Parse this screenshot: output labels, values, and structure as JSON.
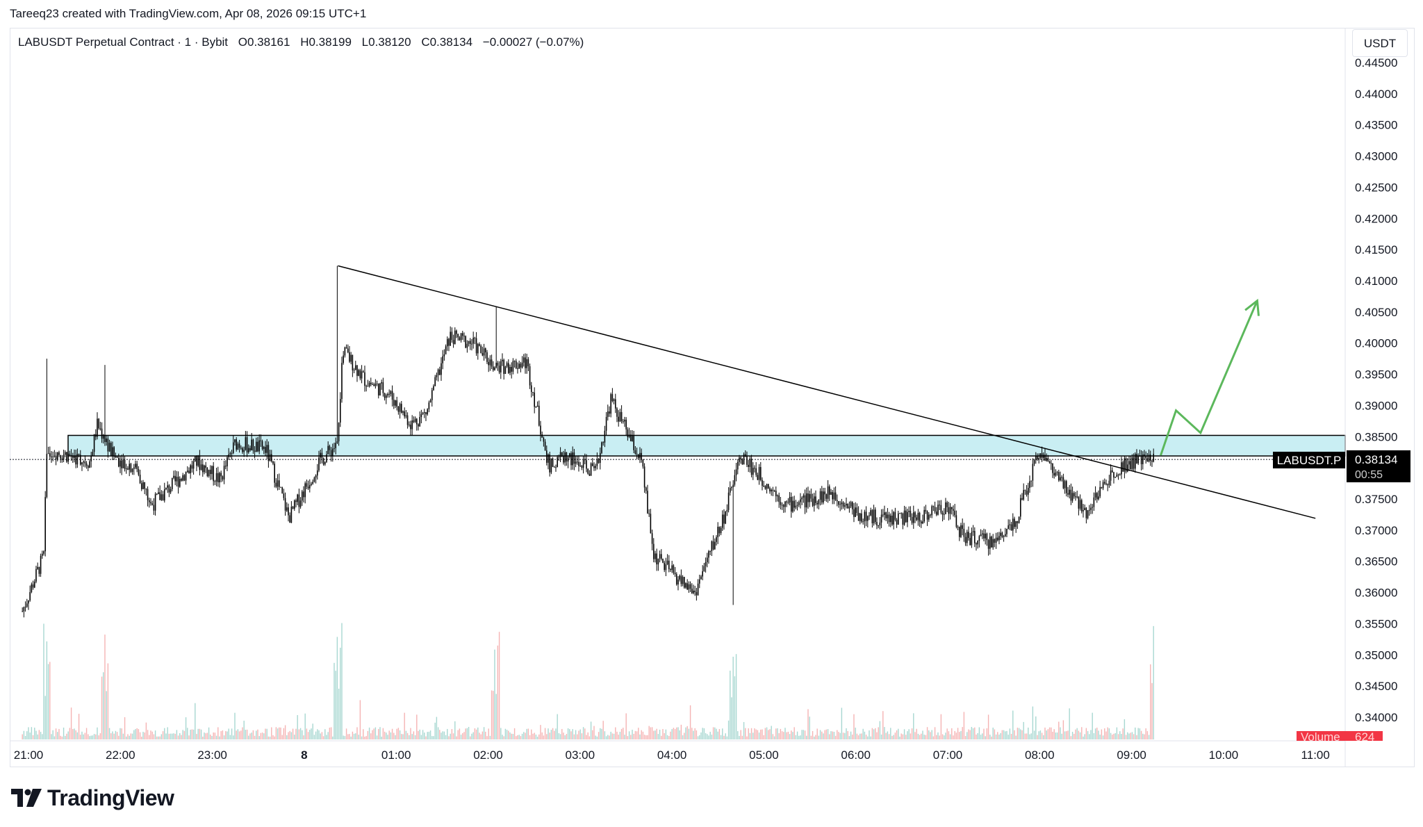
{
  "header": {
    "snapshot_credit": "Tareeq23 created with TradingView.com, Apr 08, 2026 09:15 UTC+1"
  },
  "legend": {
    "symbol": "LABUSDT Perpetual Contract · 1 · Bybit",
    "open": "O0.38161",
    "high": "H0.38199",
    "low": "L0.38120",
    "close": "C0.38134",
    "change": "−0.00027 (−0.07%)"
  },
  "price_scale": {
    "currency": "USDT",
    "tick_labels": [
      "0.44500",
      "0.44000",
      "0.43500",
      "0.43000",
      "0.42500",
      "0.42000",
      "0.41500",
      "0.41000",
      "0.40500",
      "0.40000",
      "0.39500",
      "0.39000",
      "0.38500",
      "0.38000",
      "0.37500",
      "0.37000",
      "0.36500",
      "0.36000",
      "0.35500",
      "0.35000",
      "0.34500",
      "0.34000"
    ]
  },
  "last_price_badge": {
    "symbol": "LABUSDT.P",
    "price": "0.38134",
    "countdown": "00:55"
  },
  "volume_badge": {
    "label": "Volume",
    "value": "624"
  },
  "time_axis": {
    "tick_labels": [
      "21:00",
      "22:00",
      "23:00",
      "8",
      "01:00",
      "02:00",
      "03:00",
      "04:00",
      "05:00",
      "06:00",
      "07:00",
      "08:00",
      "09:00",
      "10:00",
      "11:00"
    ]
  },
  "colors": {
    "candle": "#000000",
    "zone_fill": "#c9eef3",
    "trendline": "#000000",
    "projection": "#5cb85c",
    "volume_up": "#a7d7d1",
    "volume_down": "#f5b3b3",
    "badge_bg": "#000000",
    "volume_badge_bg": "#f23645"
  },
  "chart_data": {
    "type": "candlestick",
    "interval": "1",
    "y_range": [
      0.3385,
      0.4455
    ],
    "x_range_hours": [
      "20:56",
      "11:22"
    ],
    "support_resistance_zone": {
      "low": 0.3819,
      "high": 0.3852
    },
    "trendline": {
      "start": {
        "time": "00:22",
        "price": 0.4124
      },
      "end": {
        "time": "11:00",
        "price": 0.3719
      }
    },
    "projection_path": [
      {
        "time": "09:19",
        "price": 0.382
      },
      {
        "time": "09:29",
        "price": 0.3892
      },
      {
        "time": "09:45",
        "price": 0.3856
      },
      {
        "time": "10:22",
        "price": 0.4068
      }
    ],
    "price_path": [
      {
        "time": "20:56",
        "price": 0.357
      },
      {
        "time": "21:10",
        "price": 0.366
      },
      {
        "time": "21:12",
        "price": 0.383
      },
      {
        "time": "21:40",
        "price": 0.381
      },
      {
        "time": "21:45",
        "price": 0.387
      },
      {
        "time": "21:55",
        "price": 0.382
      },
      {
        "time": "22:10",
        "price": 0.38
      },
      {
        "time": "22:20",
        "price": 0.374
      },
      {
        "time": "22:50",
        "price": 0.381
      },
      {
        "time": "23:05",
        "price": 0.378
      },
      {
        "time": "23:15",
        "price": 0.384
      },
      {
        "time": "23:35",
        "price": 0.383
      },
      {
        "time": "23:50",
        "price": 0.372
      },
      {
        "time": "00:10",
        "price": 0.381
      },
      {
        "time": "00:22",
        "price": 0.384
      },
      {
        "time": "00:25",
        "price": 0.399
      },
      {
        "time": "00:40",
        "price": 0.394
      },
      {
        "time": "00:55",
        "price": 0.392
      },
      {
        "time": "01:10",
        "price": 0.387
      },
      {
        "time": "01:20",
        "price": 0.389
      },
      {
        "time": "01:35",
        "price": 0.401
      },
      {
        "time": "01:50",
        "price": 0.4
      },
      {
        "time": "02:05",
        "price": 0.396
      },
      {
        "time": "02:25",
        "price": 0.397
      },
      {
        "time": "02:40",
        "price": 0.38
      },
      {
        "time": "02:50",
        "price": 0.382
      },
      {
        "time": "03:10",
        "price": 0.379
      },
      {
        "time": "03:20",
        "price": 0.391
      },
      {
        "time": "03:40",
        "price": 0.381
      },
      {
        "time": "03:48",
        "price": 0.366
      },
      {
        "time": "04:05",
        "price": 0.362
      },
      {
        "time": "04:15",
        "price": 0.36
      },
      {
        "time": "04:35",
        "price": 0.373
      },
      {
        "time": "04:45",
        "price": 0.382
      },
      {
        "time": "05:00",
        "price": 0.378
      },
      {
        "time": "05:15",
        "price": 0.374
      },
      {
        "time": "05:45",
        "price": 0.376
      },
      {
        "time": "06:05",
        "price": 0.372
      },
      {
        "time": "06:40",
        "price": 0.372
      },
      {
        "time": "07:00",
        "price": 0.374
      },
      {
        "time": "07:10",
        "price": 0.369
      },
      {
        "time": "07:30",
        "price": 0.368
      },
      {
        "time": "07:45",
        "price": 0.372
      },
      {
        "time": "08:00",
        "price": 0.383
      },
      {
        "time": "08:15",
        "price": 0.377
      },
      {
        "time": "08:30",
        "price": 0.373
      },
      {
        "time": "08:50",
        "price": 0.38
      },
      {
        "time": "09:00",
        "price": 0.381
      },
      {
        "time": "09:10",
        "price": 0.3813
      },
      {
        "time": "09:15",
        "price": 0.38134
      }
    ],
    "spikes": [
      {
        "time": "21:12",
        "high": 0.3975
      },
      {
        "time": "21:50",
        "high": 0.3965
      },
      {
        "time": "00:22",
        "high": 0.4124
      },
      {
        "time": "02:05",
        "high": 0.4058
      },
      {
        "time": "04:40",
        "low": 0.358
      },
      {
        "time": "09:15",
        "high": 0.3877
      }
    ]
  }
}
